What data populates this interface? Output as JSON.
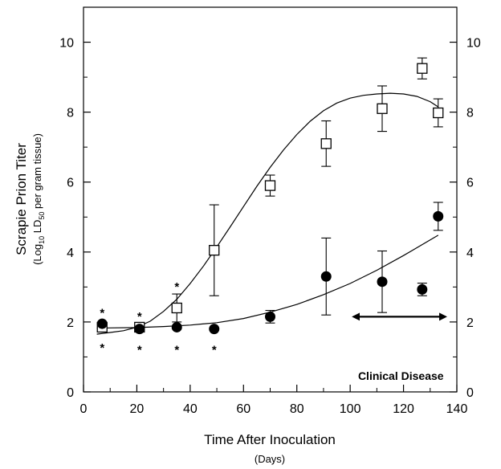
{
  "chart_data": {
    "type": "scatter",
    "title": "",
    "xlabel": "Time After Inoculation",
    "xlabel_sub": "(Days)",
    "ylabel": "Scrapie Prion Titer",
    "ylabel_sub_parts": [
      "(Log",
      "10",
      " LD",
      "50",
      " per gram tissue)"
    ],
    "xlim": [
      0,
      140
    ],
    "ylim": [
      0,
      11
    ],
    "x_ticks": [
      0,
      20,
      40,
      60,
      80,
      100,
      120,
      140
    ],
    "y_ticks": [
      0,
      2,
      4,
      6,
      8,
      10
    ],
    "grid": false,
    "legend": "none",
    "series": [
      {
        "marker": "open-square",
        "points": [
          {
            "x": 7,
            "y": 1.85,
            "err": 0.1
          },
          {
            "x": 21,
            "y": 1.85,
            "err": 0.05
          },
          {
            "x": 35,
            "y": 2.4,
            "err": 0.4
          },
          {
            "x": 49,
            "y": 4.05,
            "err": 1.3
          },
          {
            "x": 70,
            "y": 5.9,
            "err": 0.3
          },
          {
            "x": 91,
            "y": 7.1,
            "err": 0.65
          },
          {
            "x": 112,
            "y": 8.1,
            "err": 0.65
          },
          {
            "x": 127,
            "y": 9.25,
            "err": 0.3
          },
          {
            "x": 133,
            "y": 7.98,
            "err": 0.4
          }
        ],
        "fit_curve": [
          [
            5,
            1.65
          ],
          [
            10,
            1.7
          ],
          [
            15,
            1.75
          ],
          [
            20,
            1.85
          ],
          [
            25,
            2.02
          ],
          [
            30,
            2.3
          ],
          [
            35,
            2.65
          ],
          [
            40,
            3.1
          ],
          [
            45,
            3.6
          ],
          [
            50,
            4.15
          ],
          [
            55,
            4.72
          ],
          [
            60,
            5.3
          ],
          [
            65,
            5.88
          ],
          [
            70,
            6.42
          ],
          [
            75,
            6.92
          ],
          [
            80,
            7.36
          ],
          [
            85,
            7.74
          ],
          [
            90,
            8.04
          ],
          [
            95,
            8.26
          ],
          [
            100,
            8.4
          ],
          [
            105,
            8.48
          ],
          [
            110,
            8.52
          ],
          [
            115,
            8.54
          ],
          [
            120,
            8.52
          ],
          [
            125,
            8.45
          ],
          [
            130,
            8.3
          ],
          [
            133,
            8.15
          ]
        ]
      },
      {
        "marker": "filled-circle",
        "points": [
          {
            "x": 7,
            "y": 1.95,
            "err": 0
          },
          {
            "x": 21,
            "y": 1.8,
            "err": 0
          },
          {
            "x": 35,
            "y": 1.85,
            "err": 0
          },
          {
            "x": 49,
            "y": 1.8,
            "err": 0
          },
          {
            "x": 70,
            "y": 2.15,
            "err": 0.18
          },
          {
            "x": 91,
            "y": 3.3,
            "err": 1.1
          },
          {
            "x": 112,
            "y": 3.15,
            "err": 0.88
          },
          {
            "x": 127,
            "y": 2.93,
            "err": 0.18
          },
          {
            "x": 133,
            "y": 5.02,
            "err": 0.4
          }
        ],
        "fit_curve": [
          [
            5,
            1.82
          ],
          [
            10,
            1.83
          ],
          [
            20,
            1.84
          ],
          [
            30,
            1.87
          ],
          [
            40,
            1.91
          ],
          [
            50,
            1.98
          ],
          [
            60,
            2.1
          ],
          [
            70,
            2.28
          ],
          [
            80,
            2.5
          ],
          [
            90,
            2.78
          ],
          [
            100,
            3.1
          ],
          [
            110,
            3.48
          ],
          [
            120,
            3.9
          ],
          [
            133,
            4.48
          ]
        ]
      }
    ],
    "stars": [
      {
        "x": 7,
        "y": 2.35
      },
      {
        "x": 7,
        "y": 1.35
      },
      {
        "x": 21,
        "y": 2.25
      },
      {
        "x": 21,
        "y": 1.3
      },
      {
        "x": 35,
        "y": 3.1
      },
      {
        "x": 35,
        "y": 1.3
      },
      {
        "x": 49,
        "y": 1.3
      }
    ],
    "star_symbol": "*",
    "annotation": {
      "text": "Clinical Disease",
      "arrow_from": 100,
      "arrow_to": 137,
      "arrow_y": 2.15,
      "text_x": 119,
      "text_y": 0.35
    }
  }
}
